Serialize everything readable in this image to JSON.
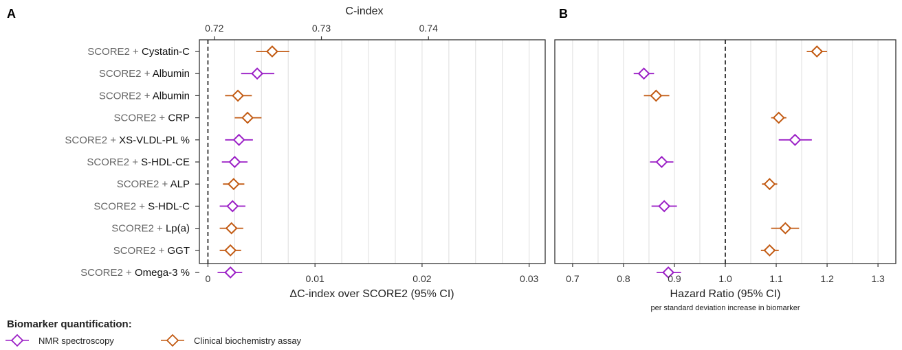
{
  "panels": {
    "a_letter": "A",
    "b_letter": "B"
  },
  "chart_data": [
    {
      "type": "scatter",
      "subtype": "forest-plot",
      "panel": "A",
      "xlabel": "ΔC-index over SCORE2 (95% CI)",
      "x_ticks": [
        "0",
        "0.01",
        "0.02",
        "0.03"
      ],
      "xlim": [
        -0.0008,
        0.0315
      ],
      "top_axis": {
        "title": "C-index",
        "ticks": [
          "0.72",
          "0.73",
          "0.74"
        ],
        "tick_values": [
          0.0006,
          0.0106,
          0.0206
        ]
      },
      "reference_line": 0,
      "grid": true,
      "rows": [
        {
          "prefix": "SCORE2 + ",
          "name": "Cystatin-C",
          "method": "clinical",
          "est": 0.006,
          "lo": 0.0045,
          "hi": 0.0076
        },
        {
          "prefix": "SCORE2 + ",
          "name": "Albumin",
          "method": "nmr",
          "est": 0.0046,
          "lo": 0.0031,
          "hi": 0.0062
        },
        {
          "prefix": "SCORE2 + ",
          "name": "Albumin",
          "method": "clinical",
          "est": 0.0028,
          "lo": 0.0016,
          "hi": 0.0041
        },
        {
          "prefix": "SCORE2 + ",
          "name": "CRP",
          "method": "clinical",
          "est": 0.0037,
          "lo": 0.0025,
          "hi": 0.005
        },
        {
          "prefix": "SCORE2 + ",
          "name": "XS-VLDL-PL %",
          "method": "nmr",
          "est": 0.0029,
          "lo": 0.0016,
          "hi": 0.0042
        },
        {
          "prefix": "SCORE2 + ",
          "name": "S-HDL-CE",
          "method": "nmr",
          "est": 0.0025,
          "lo": 0.0013,
          "hi": 0.0037
        },
        {
          "prefix": "SCORE2 + ",
          "name": "ALP",
          "method": "clinical",
          "est": 0.0024,
          "lo": 0.0014,
          "hi": 0.0034
        },
        {
          "prefix": "SCORE2 + ",
          "name": "S-HDL-C",
          "method": "nmr",
          "est": 0.0023,
          "lo": 0.0011,
          "hi": 0.0035
        },
        {
          "prefix": "SCORE2 + ",
          "name": "Lp(a)",
          "method": "clinical",
          "est": 0.0022,
          "lo": 0.0011,
          "hi": 0.0033
        },
        {
          "prefix": "SCORE2 + ",
          "name": "GGT",
          "method": "clinical",
          "est": 0.0021,
          "lo": 0.0011,
          "hi": 0.0031
        },
        {
          "prefix": "SCORE2 + ",
          "name": "Omega-3 %",
          "method": "nmr",
          "est": 0.0021,
          "lo": 0.0009,
          "hi": 0.0032
        }
      ]
    },
    {
      "type": "scatter",
      "subtype": "forest-plot",
      "panel": "B",
      "xlabel": "Hazard Ratio (95% CI)",
      "xsublabel": "per standard deviation increase in biomarker",
      "x_ticks": [
        "0.7",
        "0.8",
        "0.9",
        "1.0",
        "1.1",
        "1.2",
        "1.3"
      ],
      "xlim": [
        0.665,
        1.335
      ],
      "reference_line": 1.0,
      "grid": true,
      "rows": [
        {
          "method": "clinical",
          "est": 1.18,
          "lo": 1.16,
          "hi": 1.2
        },
        {
          "method": "nmr",
          "est": 0.84,
          "lo": 0.82,
          "hi": 0.86
        },
        {
          "method": "clinical",
          "est": 0.864,
          "lo": 0.84,
          "hi": 0.89
        },
        {
          "method": "clinical",
          "est": 1.105,
          "lo": 1.09,
          "hi": 1.12
        },
        {
          "method": "nmr",
          "est": 1.137,
          "lo": 1.105,
          "hi": 1.17
        },
        {
          "method": "nmr",
          "est": 0.875,
          "lo": 0.852,
          "hi": 0.898
        },
        {
          "method": "clinical",
          "est": 1.087,
          "lo": 1.072,
          "hi": 1.102
        },
        {
          "method": "nmr",
          "est": 0.88,
          "lo": 0.855,
          "hi": 0.905
        },
        {
          "method": "clinical",
          "est": 1.118,
          "lo": 1.09,
          "hi": 1.145
        },
        {
          "method": "clinical",
          "est": 1.087,
          "lo": 1.07,
          "hi": 1.105
        },
        {
          "method": "nmr",
          "est": 0.888,
          "lo": 0.865,
          "hi": 0.913
        }
      ]
    }
  ],
  "legend": {
    "title": "Biomarker quantification:",
    "items": [
      {
        "key": "nmr",
        "label": "NMR spectroscopy",
        "color": "#9b1fc6"
      },
      {
        "key": "clinical",
        "label": "Clinical biochemistry assay",
        "color": "#c25a12"
      }
    ]
  }
}
